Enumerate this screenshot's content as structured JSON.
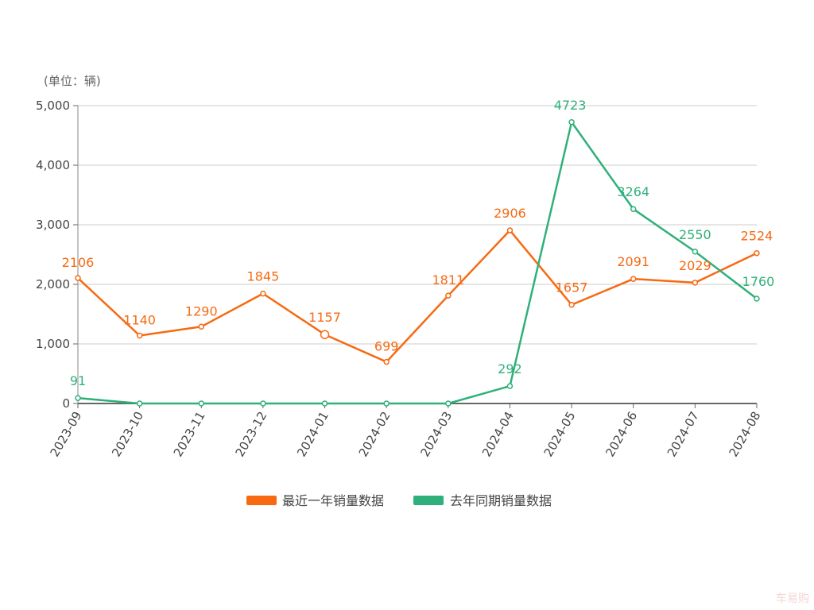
{
  "chart_data": {
    "type": "line",
    "unit_label": "(单位：辆)",
    "categories": [
      "2023-09",
      "2023-10",
      "2023-11",
      "2023-12",
      "2024-01",
      "2024-02",
      "2024-03",
      "2024-04",
      "2024-05",
      "2024-06",
      "2024-07",
      "2024-08"
    ],
    "ylim": [
      0,
      5000
    ],
    "yticks": [
      "0",
      "1,000",
      "2,000",
      "3,000",
      "4,000",
      "5,000"
    ],
    "grid": true,
    "legend_position": "bottom",
    "series": [
      {
        "name": "最近一年销量数据",
        "color": "#f76a12",
        "values": [
          2106,
          1140,
          1290,
          1845,
          1157,
          699,
          1811,
          2906,
          1657,
          2091,
          2029,
          2524
        ],
        "labels": [
          2106,
          1140,
          1290,
          1845,
          1157,
          699,
          1811,
          2906,
          1657,
          2091,
          2029,
          2524
        ]
      },
      {
        "name": "去年同期销量数据",
        "color": "#2fb07a",
        "values": [
          91,
          0,
          0,
          0,
          0,
          0,
          0,
          292,
          4723,
          3264,
          2550,
          1760
        ],
        "labels": [
          91,
          null,
          null,
          null,
          null,
          null,
          null,
          292,
          4723,
          3264,
          2550,
          1760
        ]
      }
    ]
  },
  "watermark": "车易购"
}
